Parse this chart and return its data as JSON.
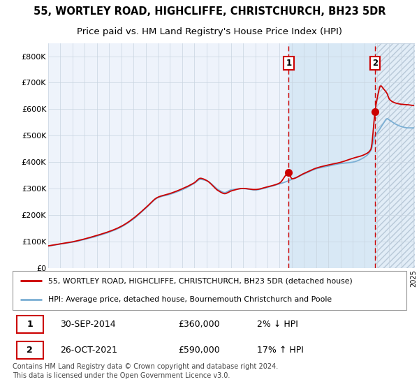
{
  "title": "55, WORTLEY ROAD, HIGHCLIFFE, CHRISTCHURCH, BH23 5DR",
  "subtitle": "Price paid vs. HM Land Registry's House Price Index (HPI)",
  "x_start_year": 1995,
  "x_end_year": 2025,
  "ylim": [
    0,
    850000
  ],
  "yticks": [
    0,
    100000,
    200000,
    300000,
    400000,
    500000,
    600000,
    700000,
    800000
  ],
  "ytick_labels": [
    "£0",
    "£100K",
    "£200K",
    "£300K",
    "£400K",
    "£500K",
    "£600K",
    "£700K",
    "£800K"
  ],
  "hpi_color": "#7bafd4",
  "price_color": "#cc0000",
  "bg_color": "#ffffff",
  "plot_bg_color": "#eef3fb",
  "shaded_region_color": "#d8e8f5",
  "grid_color": "#c8d4e0",
  "annotation1_year": 2014.75,
  "annotation1_price": 360000,
  "annotation2_year": 2021.83,
  "annotation2_price": 590000,
  "legend_line1": "55, WORTLEY ROAD, HIGHCLIFFE, CHRISTCHURCH, BH23 5DR (detached house)",
  "legend_line2": "HPI: Average price, detached house, Bournemouth Christchurch and Poole",
  "table_row1": [
    "1",
    "30-SEP-2014",
    "£360,000",
    "2% ↓ HPI"
  ],
  "table_row2": [
    "2",
    "26-OCT-2021",
    "£590,000",
    "17% ↑ HPI"
  ],
  "footer": "Contains HM Land Registry data © Crown copyright and database right 2024.\nThis data is licensed under the Open Government Licence v3.0.",
  "title_fontsize": 10.5,
  "subtitle_fontsize": 9.5
}
